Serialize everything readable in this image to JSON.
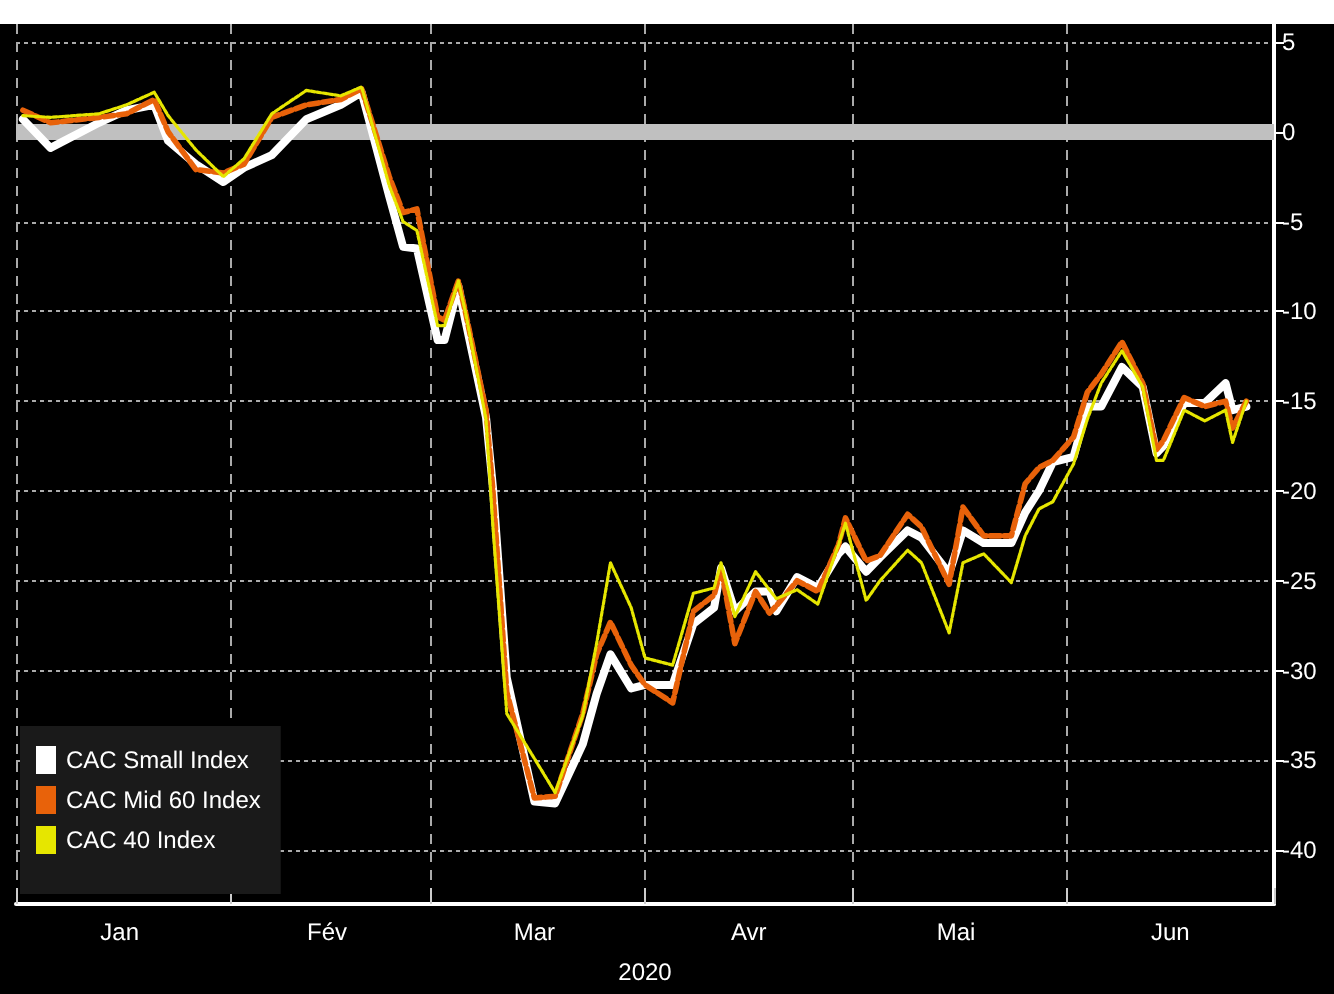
{
  "chart_data": {
    "type": "line",
    "xlabel": "2020",
    "x": [
      "2020-01-02",
      "2020-01-06",
      "2020-01-13",
      "2020-01-17",
      "2020-01-21",
      "2020-01-23",
      "2020-01-27",
      "2020-01-31",
      "2020-02-03",
      "2020-02-07",
      "2020-02-12",
      "2020-02-17",
      "2020-02-20",
      "2020-02-24",
      "2020-02-26",
      "2020-02-28",
      "2020-03-02",
      "2020-03-03",
      "2020-03-05",
      "2020-03-06",
      "2020-03-09",
      "2020-03-10",
      "2020-03-12",
      "2020-03-16",
      "2020-03-19",
      "2020-03-23",
      "2020-03-25",
      "2020-03-27",
      "2020-03-30",
      "2020-04-01",
      "2020-04-05",
      "2020-04-08",
      "2020-04-11",
      "2020-04-12",
      "2020-04-14",
      "2020-04-17",
      "2020-04-19",
      "2020-04-20",
      "2020-04-23",
      "2020-04-26",
      "2020-04-29",
      "2020-04-30",
      "2020-05-03",
      "2020-05-05",
      "2020-05-09",
      "2020-05-11",
      "2020-05-15",
      "2020-05-17",
      "2020-05-20",
      "2020-05-24",
      "2020-05-26",
      "2020-05-28",
      "2020-05-30",
      "2020-06-02",
      "2020-06-04",
      "2020-06-06",
      "2020-06-09",
      "2020-06-12",
      "2020-06-14",
      "2020-06-15",
      "2020-06-18",
      "2020-06-21",
      "2020-06-24",
      "2020-06-25",
      "2020-06-27"
    ],
    "series": [
      {
        "name": "CAC Small Index",
        "color": "#ffffff",
        "line_style": "solid",
        "values": [
          0.7,
          -0.9,
          0.5,
          1.2,
          1.5,
          -0.5,
          -1.8,
          -2.8,
          -2.0,
          -1.3,
          0.7,
          1.5,
          2.2,
          -3.6,
          -6.4,
          -6.5,
          -11.6,
          -11.6,
          -8.6,
          -10.5,
          -15.9,
          -19.8,
          -30.4,
          -37.3,
          -37.4,
          -34.1,
          -31.3,
          -29.1,
          -31.0,
          -30.8,
          -30.8,
          -27.4,
          -26.5,
          -24.3,
          -26.7,
          -25.6,
          -25.6,
          -26.7,
          -24.8,
          -25.4,
          -23.5,
          -23.1,
          -24.5,
          -23.7,
          -22.2,
          -22.6,
          -24.6,
          -22.2,
          -22.9,
          -22.9,
          -21.2,
          -20.0,
          -18.4,
          -18.1,
          -15.3,
          -15.3,
          -13.1,
          -14.2,
          -17.9,
          -17.5,
          -15.1,
          -15.1,
          -14.0,
          -15.5,
          -15.3
        ]
      },
      {
        "name": "CAC Mid 60 Index",
        "color": "#e8620a",
        "line_style": "dashed",
        "values": [
          1.2,
          0.5,
          0.8,
          1.0,
          1.8,
          0.0,
          -2.1,
          -2.3,
          -1.8,
          0.8,
          1.5,
          1.8,
          2.4,
          -2.5,
          -4.5,
          -4.3,
          -10.3,
          -10.5,
          -8.3,
          -10.0,
          -15.5,
          -20.0,
          -31.2,
          -37.1,
          -37.0,
          -32.4,
          -29.1,
          -27.3,
          -29.7,
          -30.8,
          -31.8,
          -26.7,
          -25.8,
          -24.3,
          -28.5,
          -25.6,
          -26.8,
          -26.4,
          -25.0,
          -25.6,
          -23.0,
          -21.5,
          -23.9,
          -23.6,
          -21.3,
          -22.0,
          -25.2,
          -20.9,
          -22.5,
          -22.5,
          -19.6,
          -18.7,
          -18.3,
          -17.0,
          -14.5,
          -13.5,
          -11.7,
          -14.0,
          -17.7,
          -17.2,
          -14.8,
          -15.3,
          -15.0,
          -16.5,
          -15.0
        ]
      },
      {
        "name": "CAC 40 Index",
        "color": "#e6e600",
        "line_style": "dotted",
        "values": [
          0.9,
          0.8,
          1.0,
          1.5,
          2.2,
          0.9,
          -1.0,
          -2.5,
          -1.5,
          1.0,
          2.3,
          2.0,
          2.5,
          -3.0,
          -5.0,
          -5.5,
          -10.8,
          -10.8,
          -8.3,
          -10.0,
          -16.0,
          -22.0,
          -32.4,
          -34.9,
          -36.8,
          -32.5,
          -28.5,
          -24.0,
          -26.5,
          -29.3,
          -29.7,
          -25.7,
          -25.4,
          -24.0,
          -27.0,
          -24.5,
          -25.5,
          -26.0,
          -25.5,
          -26.3,
          -23.0,
          -21.8,
          -26.1,
          -25.0,
          -23.3,
          -24.0,
          -27.9,
          -24.0,
          -23.5,
          -25.1,
          -22.5,
          -21.0,
          -20.6,
          -18.5,
          -16.0,
          -14.0,
          -12.2,
          -14.2,
          -18.3,
          -18.3,
          -15.5,
          -16.1,
          -15.5,
          -17.3,
          -15.0
        ]
      }
    ],
    "xlim": [
      "2020-01-01",
      "2020-07-01"
    ],
    "xticks": [
      {
        "value": "2020-01-01",
        "label": null
      },
      {
        "value": "2020-01-16",
        "label": "Jan"
      },
      {
        "value": "2020-02-01",
        "label": null
      },
      {
        "value": "2020-02-15",
        "label": "Fév"
      },
      {
        "value": "2020-03-01",
        "label": null
      },
      {
        "value": "2020-03-16",
        "label": "Mar"
      },
      {
        "value": "2020-04-01",
        "label": null
      },
      {
        "value": "2020-04-16",
        "label": "Avr"
      },
      {
        "value": "2020-05-01",
        "label": null
      },
      {
        "value": "2020-05-16",
        "label": "Mai"
      },
      {
        "value": "2020-06-01",
        "label": null
      },
      {
        "value": "2020-06-16",
        "label": "Jun"
      },
      {
        "value": "2020-07-01",
        "label": null
      }
    ],
    "ylim": [
      -43,
      6
    ],
    "yticks": [
      -40,
      -35,
      -30,
      -25,
      -20,
      -15,
      -10,
      -5,
      0,
      5
    ],
    "ref_lines": [
      {
        "axis": "y",
        "value": 0,
        "label": null,
        "color": "#c0c0c0"
      }
    ],
    "grid": true,
    "legend": "bottom left",
    "marker": "none"
  }
}
